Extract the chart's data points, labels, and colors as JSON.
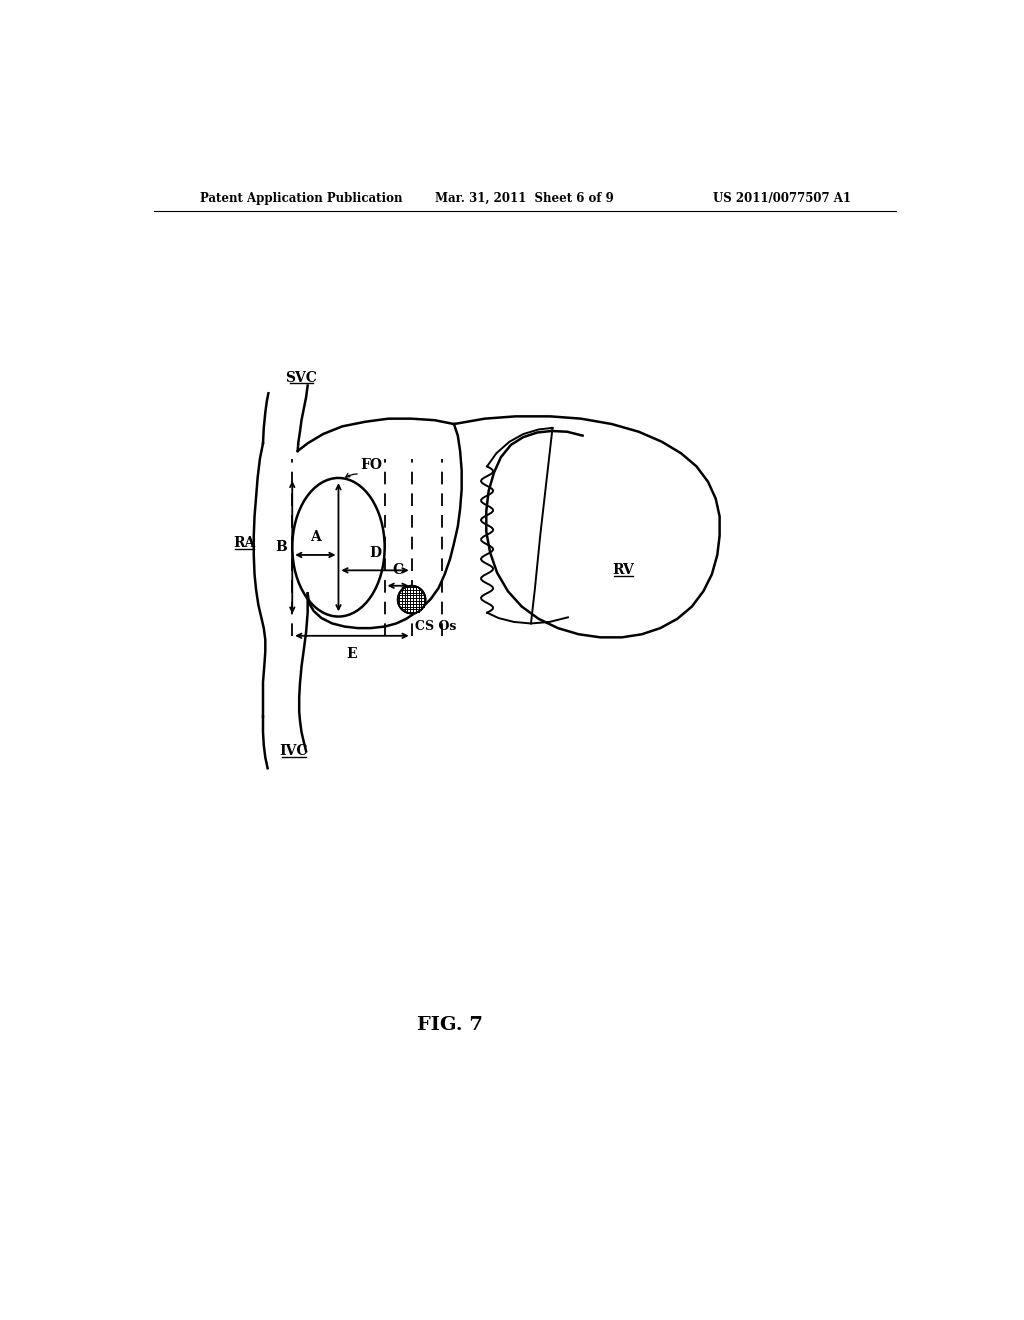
{
  "background_color": "#ffffff",
  "header_left": "Patent Application Publication",
  "header_mid": "Mar. 31, 2011  Sheet 6 of 9",
  "header_right": "US 2011/0077507 A1",
  "figure_label": "FIG. 7"
}
